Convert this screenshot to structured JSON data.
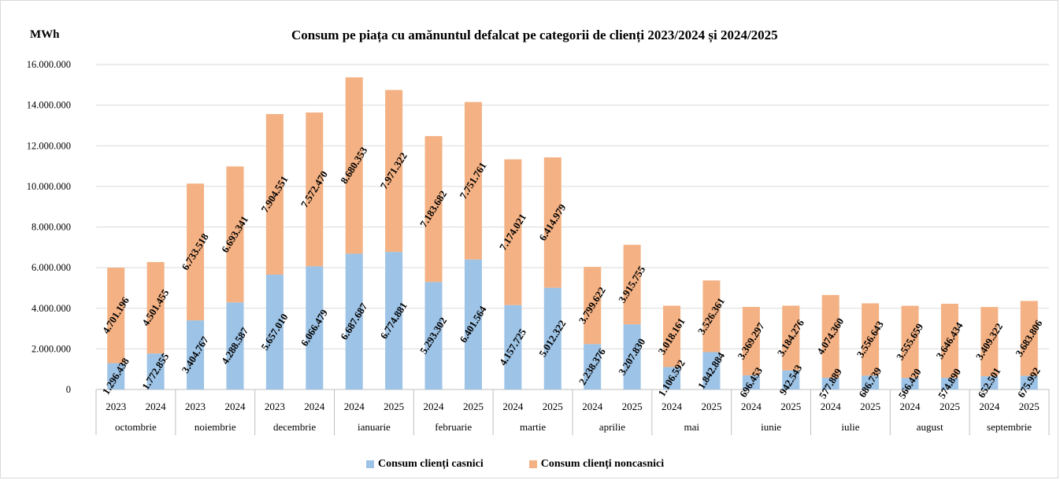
{
  "chart_data": {
    "type": "bar",
    "stacked": true,
    "title": "Consum pe piața cu amănuntul defalcat pe categorii de clienți 2023/2024 și 2024/2025",
    "unit_label": "MWh",
    "ylim": [
      0,
      16000000
    ],
    "yticks": [
      "0",
      "2.000.000",
      "4.000.000",
      "6.000.000",
      "8.000.000",
      "10.000.000",
      "12.000.000",
      "14.000.000",
      "16.000.000"
    ],
    "grid": true,
    "legend_position": "bottom",
    "months": [
      {
        "label": "octombrie",
        "years": [
          "2023",
          "2024"
        ]
      },
      {
        "label": "noiembrie",
        "years": [
          "2023",
          "2024"
        ]
      },
      {
        "label": "decembrie",
        "years": [
          "2023",
          "2024"
        ]
      },
      {
        "label": "ianuarie",
        "years": [
          "2024",
          "2025"
        ]
      },
      {
        "label": "februarie",
        "years": [
          "2024",
          "2025"
        ]
      },
      {
        "label": "martie",
        "years": [
          "2024",
          "2025"
        ]
      },
      {
        "label": "aprilie",
        "years": [
          "2024",
          "2025"
        ]
      },
      {
        "label": "mai",
        "years": [
          "2024",
          "2025"
        ]
      },
      {
        "label": "iunie",
        "years": [
          "2024",
          "2025"
        ]
      },
      {
        "label": "iulie",
        "years": [
          "2024",
          "2025"
        ]
      },
      {
        "label": "august",
        "years": [
          "2024",
          "2025"
        ]
      },
      {
        "label": "septembrie",
        "years": [
          "2024",
          "2025"
        ]
      }
    ],
    "series": [
      {
        "name": "Consum clienți casnici",
        "color": "#9dc3e6",
        "values": [
          1296438,
          1772855,
          3404767,
          4288587,
          5657010,
          6066479,
          6687687,
          6774881,
          5293302,
          6401564,
          4157725,
          5012322,
          2238376,
          3207830,
          1106592,
          1842884,
          696453,
          942543,
          577889,
          686739,
          566420,
          574890,
          652501,
          675992
        ],
        "labels": [
          "1.296.438",
          "1.772.855",
          "3.404.767",
          "4.288.587",
          "5.657.010",
          "6.066.479",
          "6.687.687",
          "6.774.881",
          "5.293.302",
          "6.401.564",
          "4.157.725",
          "5.012.322",
          "2.238.376",
          "3.207.830",
          "1.106.592",
          "1.842.884",
          "696.453",
          "942.543",
          "577.889",
          "686.739",
          "566.420",
          "574.890",
          "652.501",
          "675.992"
        ]
      },
      {
        "name": "Consum clienți noncasnici",
        "color": "#f4b183",
        "values": [
          4701196,
          4501455,
          6733518,
          6693341,
          7904551,
          7572470,
          8680353,
          7971322,
          7183682,
          7751761,
          7174021,
          6414979,
          3799622,
          3915755,
          3018161,
          3526361,
          3369297,
          3184276,
          4074360,
          3556643,
          3555659,
          3646434,
          3409322,
          3683806
        ],
        "labels": [
          "4.701.196",
          "4.501.455",
          "6.733.518",
          "6.693.341",
          "7.904.551",
          "7.572.470",
          "8.680.353",
          "7.971.322",
          "7.183.682",
          "7.751.761",
          "7.174.021",
          "6.414.979",
          "3.799.622",
          "3.915.755",
          "3.018.161",
          "3.526.361",
          "3.369.297",
          "3.184.276",
          "4.074.360",
          "3.556.643",
          "3.555.659",
          "3.646.434",
          "3.409.322",
          "3.683.806"
        ]
      }
    ]
  }
}
